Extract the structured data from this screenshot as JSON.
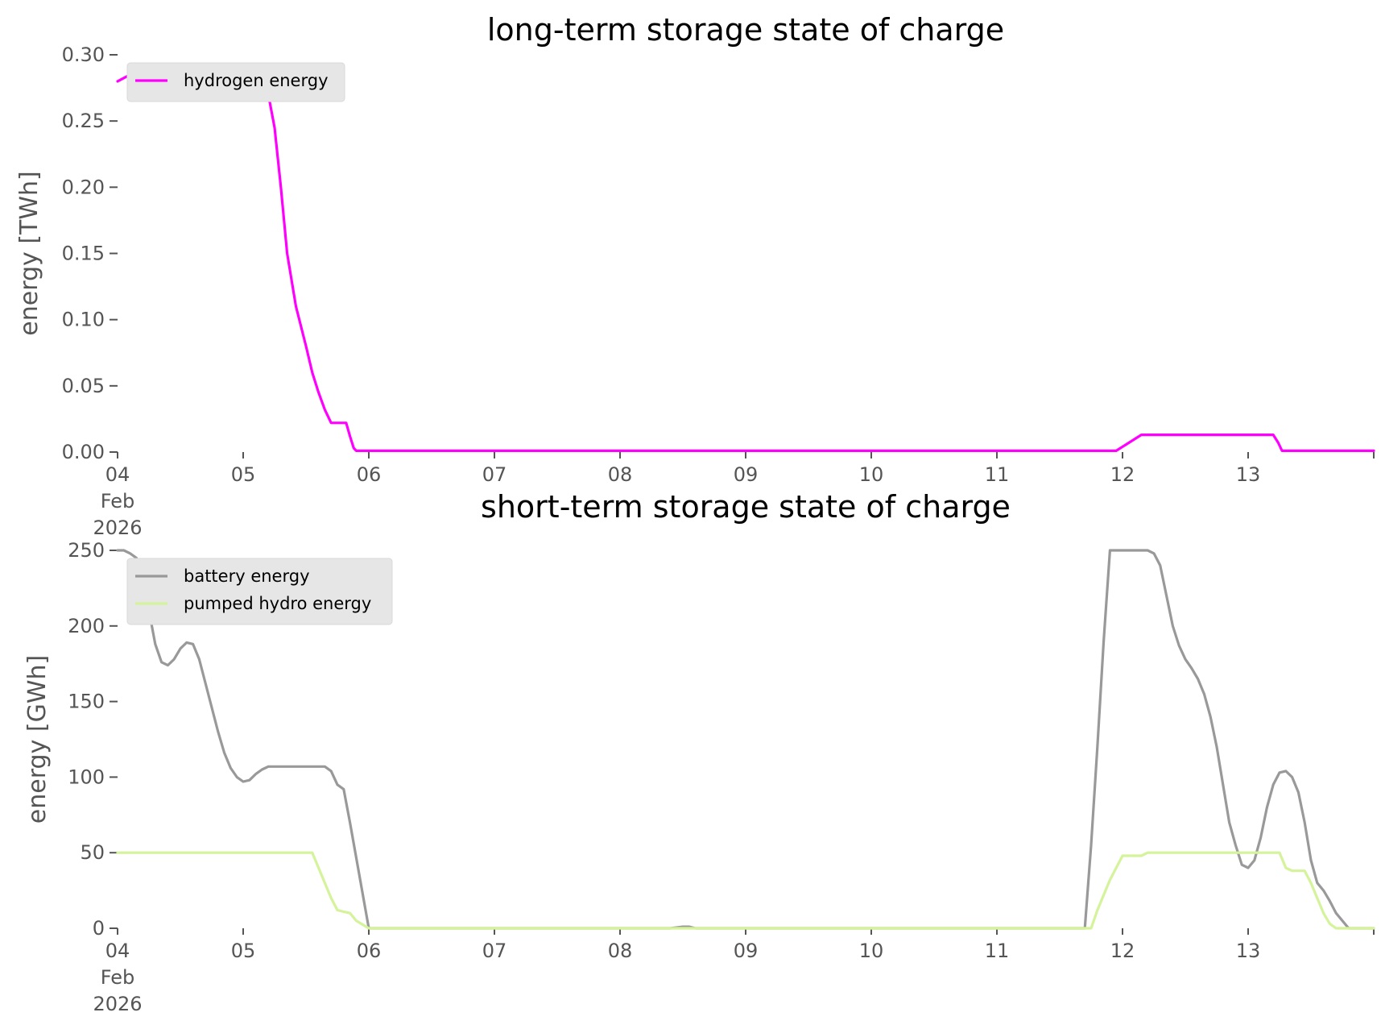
{
  "chart_data": [
    {
      "type": "line",
      "title": "long-term storage state of charge",
      "ylabel": "energy [TWh]",
      "xlabel": "",
      "ylim": [
        0,
        0.3
      ],
      "xlim": [
        0,
        10
      ],
      "yticks": [
        "0.00",
        "0.05",
        "0.10",
        "0.15",
        "0.20",
        "0.25",
        "0.30"
      ],
      "xticks": [
        {
          "value": 0,
          "lines": [
            "04",
            "Feb",
            "2026"
          ]
        },
        {
          "value": 1,
          "lines": [
            "05"
          ]
        },
        {
          "value": 2,
          "lines": [
            "06"
          ]
        },
        {
          "value": 3,
          "lines": [
            "07"
          ]
        },
        {
          "value": 4,
          "lines": [
            "08"
          ]
        },
        {
          "value": 5,
          "lines": [
            "09"
          ]
        },
        {
          "value": 6,
          "lines": [
            "10"
          ]
        },
        {
          "value": 7,
          "lines": [
            "11"
          ]
        },
        {
          "value": 8,
          "lines": [
            "12"
          ]
        },
        {
          "value": 9,
          "lines": [
            "13"
          ]
        }
      ],
      "grid": false,
      "legend_position": "top-left",
      "series": [
        {
          "name": "hydrogen energy",
          "color": "#ff00ff",
          "x": [
            0,
            0.1,
            0.25,
            0.5,
            0.75,
            1.0,
            1.12,
            1.18,
            1.25,
            1.3,
            1.35,
            1.42,
            1.5,
            1.55,
            1.6,
            1.65,
            1.7,
            1.75,
            1.78,
            1.8,
            1.82,
            1.85,
            1.88,
            1.9,
            2.0,
            3.0,
            4.0,
            5.0,
            6.0,
            7.0,
            7.95,
            8.05,
            8.15,
            8.5,
            9.0,
            9.2,
            9.24,
            9.27,
            9.5,
            10.0
          ],
          "y": [
            0.28,
            0.285,
            0.287,
            0.287,
            0.287,
            0.287,
            0.287,
            0.28,
            0.245,
            0.2,
            0.15,
            0.11,
            0.08,
            0.06,
            0.045,
            0.032,
            0.022,
            0.022,
            0.022,
            0.022,
            0.022,
            0.012,
            0.003,
            0.001,
            0.001,
            0.001,
            0.001,
            0.001,
            0.001,
            0.001,
            0.001,
            0.007,
            0.013,
            0.013,
            0.013,
            0.013,
            0.007,
            0.001,
            0.001,
            0.001
          ]
        }
      ]
    },
    {
      "type": "line",
      "title": "short-term storage state of charge",
      "ylabel": "energy [GWh]",
      "xlabel": "",
      "ylim": [
        0,
        250
      ],
      "xlim": [
        0,
        10
      ],
      "yticks": [
        "0",
        "50",
        "100",
        "150",
        "200",
        "250"
      ],
      "xticks": [
        {
          "value": 0,
          "lines": [
            "04",
            "Feb",
            "2026"
          ]
        },
        {
          "value": 1,
          "lines": [
            "05"
          ]
        },
        {
          "value": 2,
          "lines": [
            "06"
          ]
        },
        {
          "value": 3,
          "lines": [
            "07"
          ]
        },
        {
          "value": 4,
          "lines": [
            "08"
          ]
        },
        {
          "value": 5,
          "lines": [
            "09"
          ]
        },
        {
          "value": 6,
          "lines": [
            "10"
          ]
        },
        {
          "value": 7,
          "lines": [
            "11"
          ]
        },
        {
          "value": 8,
          "lines": [
            "12"
          ]
        },
        {
          "value": 9,
          "lines": [
            "13"
          ]
        }
      ],
      "grid": false,
      "legend_position": "top-left",
      "series": [
        {
          "name": "battery energy",
          "color": "#999999",
          "x": [
            0,
            0.05,
            0.1,
            0.15,
            0.2,
            0.25,
            0.3,
            0.35,
            0.4,
            0.45,
            0.5,
            0.55,
            0.6,
            0.65,
            0.7,
            0.75,
            0.8,
            0.85,
            0.9,
            0.95,
            1.0,
            1.05,
            1.1,
            1.15,
            1.2,
            1.3,
            1.4,
            1.5,
            1.55,
            1.6,
            1.65,
            1.7,
            1.75,
            1.8,
            1.85,
            2.0,
            3.0,
            4.0,
            4.4,
            4.5,
            4.55,
            4.6,
            5.0,
            6.0,
            7.0,
            7.7,
            7.75,
            7.8,
            7.85,
            7.9,
            7.95,
            8.0,
            8.1,
            8.2,
            8.25,
            8.3,
            8.35,
            8.4,
            8.45,
            8.5,
            8.55,
            8.6,
            8.65,
            8.7,
            8.75,
            8.8,
            8.85,
            8.9,
            8.95,
            9.0,
            9.05,
            9.1,
            9.15,
            9.2,
            9.25,
            9.3,
            9.35,
            9.4,
            9.45,
            9.5,
            9.55,
            9.6,
            9.65,
            9.7,
            9.8,
            10.0
          ],
          "y": [
            250,
            250,
            248,
            245,
            230,
            210,
            188,
            176,
            174,
            178,
            185,
            189,
            188,
            178,
            162,
            146,
            130,
            116,
            106,
            100,
            97,
            98,
            102,
            105,
            107,
            107,
            107,
            107,
            107,
            107,
            107,
            104,
            95,
            92,
            70,
            0,
            0,
            0,
            0,
            1,
            1,
            0,
            0,
            0,
            0,
            0,
            55,
            120,
            190,
            250,
            250,
            250,
            250,
            250,
            248,
            240,
            220,
            200,
            187,
            178,
            172,
            165,
            155,
            140,
            120,
            95,
            70,
            55,
            42,
            40,
            45,
            60,
            80,
            95,
            103,
            104,
            100,
            90,
            70,
            45,
            30,
            25,
            18,
            10,
            0,
            0
          ]
        },
        {
          "name": "pumped hydro energy",
          "color": "#d4f39b",
          "x": [
            0,
            0.5,
            1.0,
            1.5,
            1.55,
            1.6,
            1.65,
            1.7,
            1.75,
            1.8,
            1.85,
            1.9,
            2.0,
            3.0,
            4.0,
            5.0,
            6.0,
            7.0,
            7.7,
            7.75,
            7.8,
            7.85,
            7.9,
            7.95,
            8.0,
            8.1,
            8.15,
            8.2,
            8.3,
            8.5,
            9.0,
            9.1,
            9.2,
            9.25,
            9.3,
            9.35,
            9.45,
            9.5,
            9.55,
            9.6,
            9.65,
            9.7,
            9.8,
            10.0
          ],
          "y": [
            50,
            50,
            50,
            50,
            50,
            40,
            30,
            20,
            12,
            11,
            10,
            5,
            0,
            0,
            0,
            0,
            0,
            0,
            0,
            0,
            12,
            22,
            32,
            40,
            48,
            48,
            48,
            50,
            50,
            50,
            50,
            50,
            50,
            50,
            40,
            38,
            38,
            30,
            20,
            10,
            3,
            0,
            0,
            0
          ]
        }
      ]
    }
  ]
}
